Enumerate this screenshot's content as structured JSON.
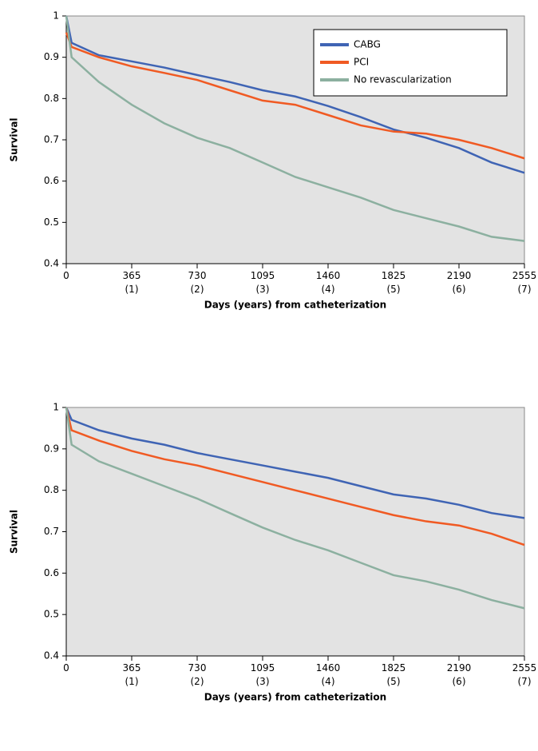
{
  "chart_data": [
    {
      "type": "line",
      "x_label": "Days (years) from catheterization",
      "y_label": "Survival",
      "x": [
        0,
        30,
        182,
        365,
        547,
        730,
        912,
        1095,
        1277,
        1460,
        1642,
        1825,
        2007,
        2190,
        2372,
        2555
      ],
      "series": [
        {
          "name": "CABG",
          "color": "#3f64b4",
          "values": [
            1,
            0.935,
            0.905,
            0.89,
            0.875,
            0.857,
            0.84,
            0.82,
            0.805,
            0.782,
            0.755,
            0.725,
            0.705,
            0.68,
            0.645,
            0.62
          ]
        },
        {
          "name": "PCI",
          "color": "#f05a23",
          "values": [
            0.96,
            0.925,
            0.9,
            0.878,
            0.862,
            0.845,
            0.82,
            0.795,
            0.785,
            0.76,
            0.735,
            0.72,
            0.715,
            0.7,
            0.68,
            0.655
          ]
        },
        {
          "name": "No revascularization",
          "color": "#8cb0a0",
          "values": [
            1,
            0.9,
            0.84,
            0.785,
            0.74,
            0.705,
            0.68,
            0.645,
            0.61,
            0.585,
            0.56,
            0.53,
            0.51,
            0.49,
            0.465,
            0.455
          ]
        }
      ],
      "xlim": [
        0,
        2555
      ],
      "ylim": [
        0.4,
        1
      ],
      "xticks": [
        0,
        {
          "value": 365,
          "label": "365\n(1)"
        },
        {
          "value": 730,
          "label": "730\n(2)"
        },
        {
          "value": 1095,
          "label": "1095\n(3)"
        },
        {
          "value": 1460,
          "label": "1460\n(4)"
        },
        {
          "value": 1825,
          "label": "1825\n(5)"
        },
        {
          "value": 2190,
          "label": "2190\n(6)"
        },
        {
          "value": 2555,
          "label": "2555\n(7)"
        }
      ],
      "yticks": [
        0.4,
        0.5,
        0.6,
        0.7,
        0.8,
        0.9,
        1
      ],
      "legend": "upper right"
    },
    {
      "type": "line",
      "x_label": "Days (years) from catheterization",
      "y_label": "Survival",
      "x": [
        0,
        30,
        182,
        365,
        547,
        730,
        912,
        1095,
        1277,
        1460,
        1642,
        1825,
        2007,
        2190,
        2372,
        2555
      ],
      "series": [
        {
          "color": "#3f64b4",
          "values": [
            1,
            0.97,
            0.945,
            0.925,
            0.91,
            0.89,
            0.875,
            0.86,
            0.845,
            0.83,
            0.81,
            0.79,
            0.78,
            0.765,
            0.745,
            0.733
          ]
        },
        {
          "color": "#f05a23",
          "values": [
            1,
            0.945,
            0.92,
            0.895,
            0.875,
            0.86,
            0.84,
            0.82,
            0.8,
            0.78,
            0.76,
            0.74,
            0.725,
            0.715,
            0.695,
            0.668
          ]
        },
        {
          "color": "#8cb0a0",
          "values": [
            1,
            0.91,
            0.87,
            0.84,
            0.81,
            0.78,
            0.745,
            0.71,
            0.68,
            0.655,
            0.625,
            0.595,
            0.58,
            0.56,
            0.535,
            0.515
          ]
        }
      ],
      "xlim": [
        0,
        2555
      ],
      "ylim": [
        0.4,
        1
      ],
      "xticks": [
        0,
        {
          "value": 365,
          "label": "365\n(1)"
        },
        {
          "value": 730,
          "label": "730\n(2)"
        },
        {
          "value": 1095,
          "label": "1095\n(3)"
        },
        {
          "value": 1460,
          "label": "1460\n(4)"
        },
        {
          "value": 1825,
          "label": "1825\n(5)"
        },
        {
          "value": 2190,
          "label": "2190\n(6)"
        },
        {
          "value": 2555,
          "label": "2555\n(7)"
        }
      ],
      "yticks": [
        0.4,
        0.5,
        0.6,
        0.7,
        0.8,
        0.9,
        1
      ]
    }
  ]
}
